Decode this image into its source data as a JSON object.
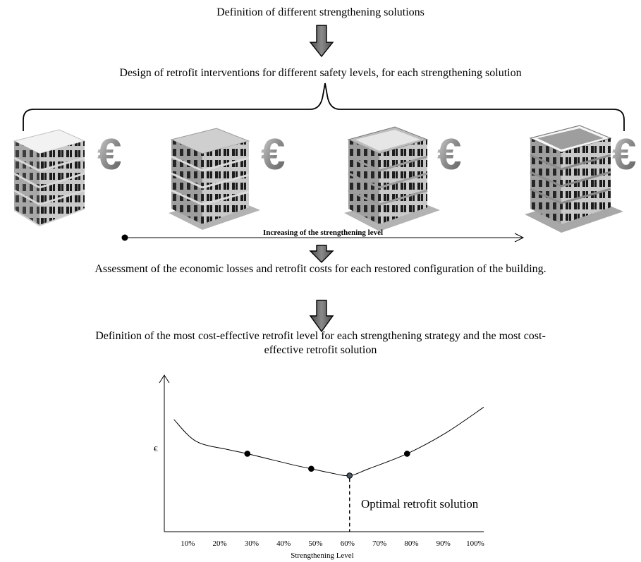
{
  "steps": {
    "step1": "Definition of different strengthening solutions",
    "step2": "Design of retrofit interventions for different safety levels, for each strengthening solution",
    "step3": "Assessment of the economic losses and retrofit costs for each restored configuration of the building.",
    "step4_line1": "Definition of the most cost-effective retrofit level for each strengthening strategy and the most cost-",
    "step4_line2": "effective retrofit solution"
  },
  "arrow_axis_label": "Increasing of the strengthening level",
  "currency_symbol": "€",
  "colors": {
    "arrow_fill": "#6e6e6e",
    "building_face": "#b4b4b4",
    "building_side": "#8f8f8f",
    "window": "#1c1c1c",
    "euro": "#9a9a9a"
  },
  "chart_data": {
    "type": "line",
    "xlabel": "Strengthening Level",
    "ylabel": "€",
    "x_ticks": [
      "10%",
      "20%",
      "30%",
      "40%",
      "50%",
      "60%",
      "70%",
      "80%",
      "90%",
      "100%"
    ],
    "xlim": [
      0,
      100
    ],
    "curve": {
      "x": [
        3,
        10,
        20,
        26,
        40,
        46,
        52,
        58,
        64,
        76,
        88,
        100
      ],
      "y": [
        0.82,
        0.66,
        0.6,
        0.57,
        0.49,
        0.46,
        0.43,
        0.41,
        0.46,
        0.57,
        0.72,
        0.91
      ]
    },
    "points": [
      {
        "x": 26,
        "y": 0.57
      },
      {
        "x": 46,
        "y": 0.46
      },
      {
        "x": 58,
        "y": 0.41,
        "optimal": true
      },
      {
        "x": 76,
        "y": 0.57
      }
    ],
    "annotation": "Optimal retrofit solution"
  }
}
